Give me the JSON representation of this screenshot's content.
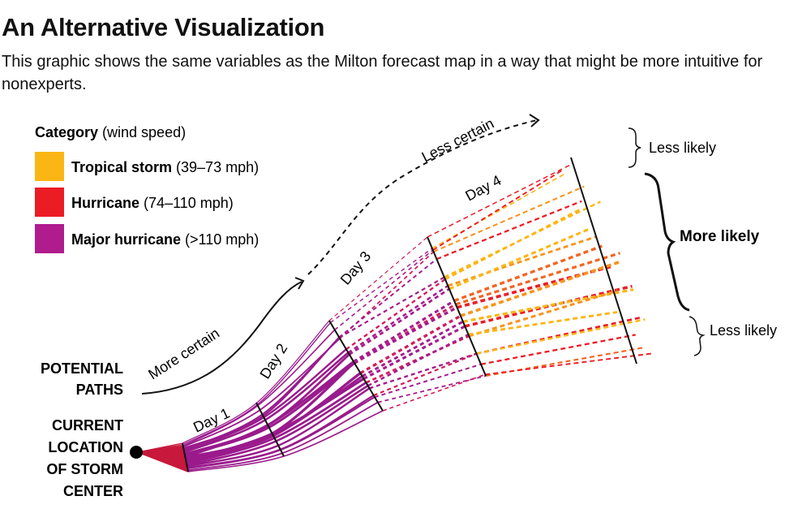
{
  "title": "An Alternative Visualization",
  "subtitle": "This graphic shows the same variables as the Milton forecast map in a way that might be more intuitive for nonexperts.",
  "legend": {
    "heading_bold": "Category",
    "heading_rest": " (wind speed)",
    "items": [
      {
        "label": "Tropical storm",
        "range": " (39–73 mph)",
        "color": "#fbb615"
      },
      {
        "label": "Hurricane",
        "range": " (74–110 mph)",
        "color": "#ec1c24"
      },
      {
        "label": "Major hurricane",
        "range": " (>110 mph)",
        "color": "#b01c8e"
      }
    ]
  },
  "labels": {
    "potential_paths": [
      "POTENTIAL",
      "PATHS"
    ],
    "current_location": [
      "CURRENT",
      "LOCATION",
      "OF STORM",
      "CENTER"
    ],
    "more_certain": "More certain",
    "less_certain": "Less certain",
    "days": [
      "Day 1",
      "Day 2",
      "Day 3",
      "Day 4"
    ],
    "less_likely_top": "Less likely",
    "more_likely": "More likely",
    "less_likely_bottom": "Less likely"
  }
}
